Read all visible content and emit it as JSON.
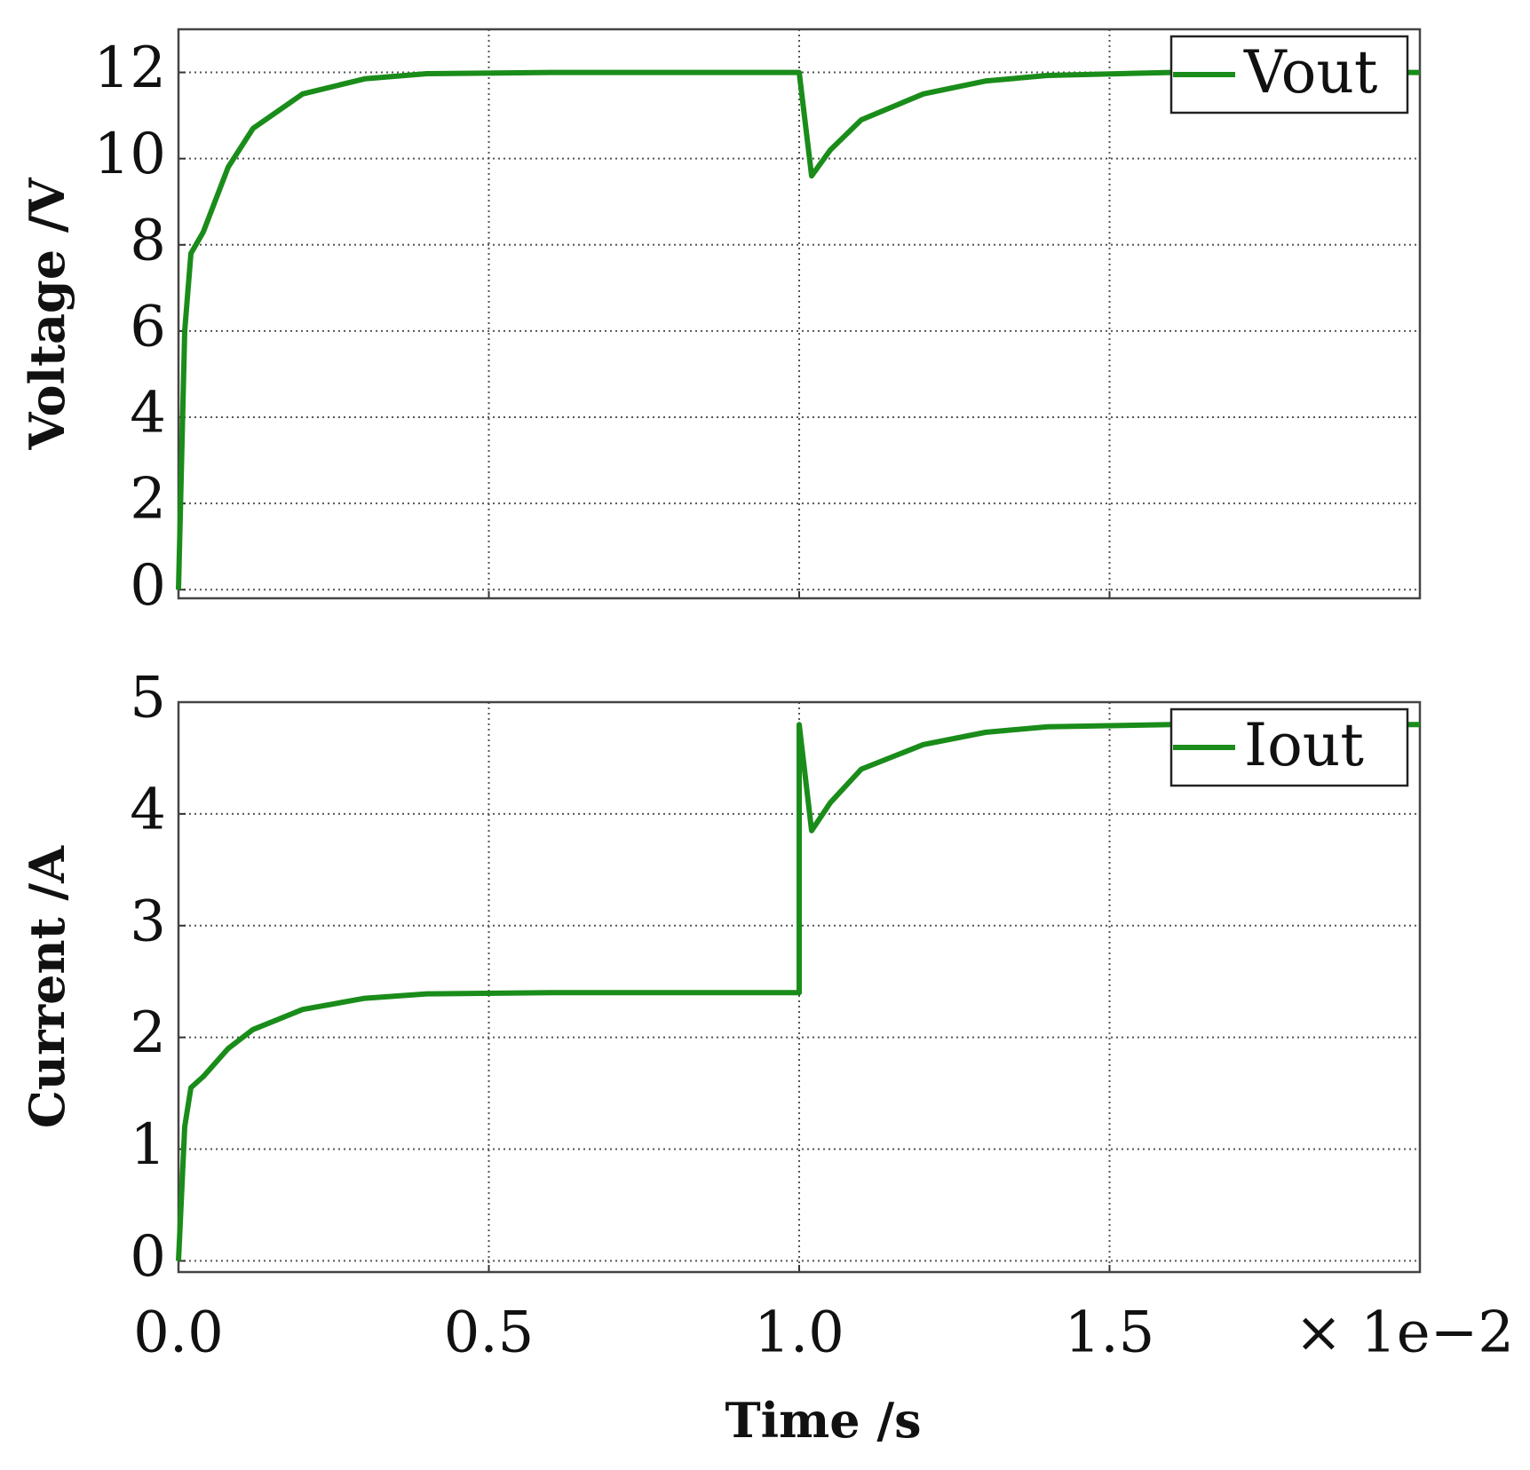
{
  "chart_data": [
    {
      "type": "line",
      "ylabel": "Voltage /V",
      "x": [
        0,
        0.01,
        0.02,
        0.04,
        0.08,
        0.12,
        0.2,
        0.3,
        0.4,
        0.6,
        1.0,
        1.02,
        1.05,
        1.1,
        1.2,
        1.3,
        1.4,
        1.6,
        2.0
      ],
      "series": [
        {
          "name": "Vout",
          "color": "#1a8c1a",
          "values": [
            0,
            6,
            7.8,
            8.3,
            9.8,
            10.7,
            11.5,
            11.85,
            11.97,
            12,
            12,
            9.6,
            10.2,
            10.9,
            11.5,
            11.8,
            11.93,
            12,
            12
          ]
        }
      ],
      "xlim": [
        0,
        2
      ],
      "xticks": [
        0,
        0.5,
        1,
        1.5
      ],
      "ylim": [
        -0.2,
        13
      ],
      "yticks": [
        0,
        2,
        4,
        6,
        8,
        10,
        12
      ],
      "grid": true,
      "legend": "upper right"
    },
    {
      "type": "line",
      "ylabel": "Current /A",
      "xlabel": "Time /s",
      "x_offset_label": "× 1e−2",
      "x": [
        0,
        0.01,
        0.02,
        0.04,
        0.08,
        0.12,
        0.2,
        0.3,
        0.4,
        0.6,
        1.0,
        1.0,
        1.02,
        1.05,
        1.1,
        1.2,
        1.3,
        1.4,
        1.6,
        2.0
      ],
      "series": [
        {
          "name": "Iout",
          "color": "#1a8c1a",
          "values": [
            0,
            1.2,
            1.55,
            1.65,
            1.9,
            2.07,
            2.25,
            2.35,
            2.39,
            2.4,
            2.4,
            4.8,
            3.85,
            4.1,
            4.4,
            4.62,
            4.73,
            4.78,
            4.8,
            4.8
          ]
        }
      ],
      "xlim": [
        0,
        2
      ],
      "xticks": [
        {
          "value": 0,
          "label": "0.0"
        },
        {
          "value": 0.5,
          "label": "0.5"
        },
        {
          "value": 1,
          "label": "1.0"
        },
        {
          "value": 1.5,
          "label": "1.5"
        }
      ],
      "ylim": [
        -0.1,
        5
      ],
      "yticks": [
        0,
        1,
        2,
        3,
        4,
        5
      ],
      "grid": true,
      "legend": "upper right"
    }
  ]
}
